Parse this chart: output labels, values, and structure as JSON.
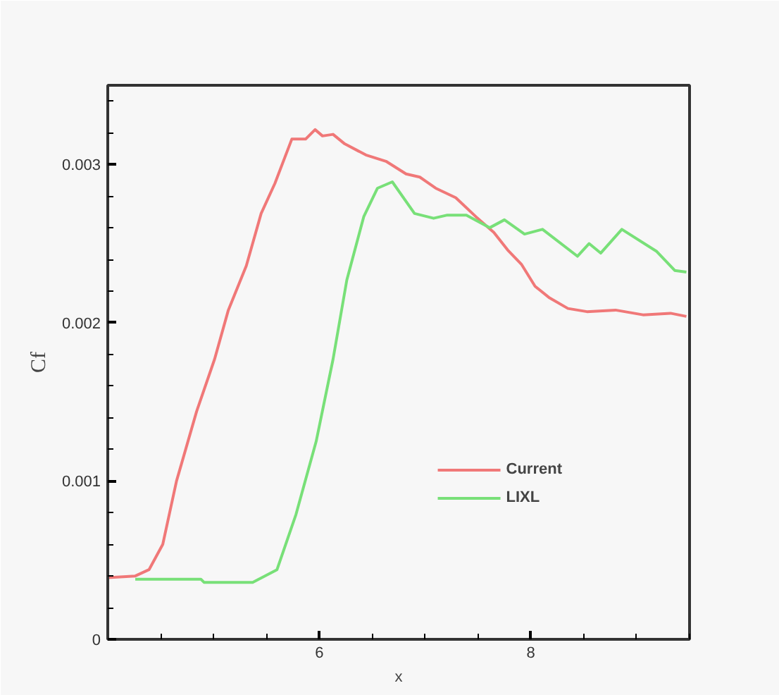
{
  "chart_data": {
    "type": "line",
    "xlabel": "x",
    "ylabel": "Cf",
    "xlim": [
      4,
      9.5
    ],
    "ylim": [
      0,
      0.0035
    ],
    "xticks": [
      6,
      8
    ],
    "yticks": [
      0,
      0.001,
      0.002,
      0.003
    ],
    "grid": false,
    "legend": "bottom right",
    "line_style": "solid",
    "marker": "none",
    "series": [
      {
        "name": "Current",
        "color": "#f07878",
        "x": [
          4,
          4.26,
          4.39,
          4.52,
          4.65,
          4.84,
          5.01,
          5.14,
          5.31,
          5.45,
          5.58,
          5.74,
          5.87,
          5.96,
          6.03,
          6.13,
          6.24,
          6.44,
          6.63,
          6.82,
          6.95,
          7.1,
          7.29,
          7.48,
          7.65,
          7.78,
          7.91,
          8.04,
          8.17,
          8.35,
          8.53,
          8.8,
          9.06,
          9.32,
          9.47
        ],
        "values": [
          0.00039,
          0.0004,
          0.00044,
          0.0006,
          0.001,
          0.00144,
          0.00177,
          0.00208,
          0.00236,
          0.00269,
          0.00288,
          0.00316,
          0.00316,
          0.00322,
          0.00318,
          0.00319,
          0.00313,
          0.00306,
          0.00302,
          0.00294,
          0.00292,
          0.00285,
          0.00279,
          0.00267,
          0.00257,
          0.00246,
          0.00237,
          0.00223,
          0.00216,
          0.00209,
          0.00207,
          0.00208,
          0.00205,
          0.00206,
          0.00204
        ]
      },
      {
        "name": "LIXL",
        "color": "#78e078",
        "x": [
          4.26,
          4.88,
          4.91,
          5.37,
          5.6,
          5.78,
          5.97,
          6.13,
          6.26,
          6.42,
          6.55,
          6.69,
          6.9,
          7.08,
          7.21,
          7.39,
          7.61,
          7.75,
          7.94,
          8.11,
          8.44,
          8.55,
          8.66,
          8.86,
          9.19,
          9.36,
          9.47
        ],
        "values": [
          0.00038,
          0.00038,
          0.00036,
          0.00036,
          0.00044,
          0.00079,
          0.00125,
          0.00177,
          0.00227,
          0.00267,
          0.00285,
          0.00289,
          0.00269,
          0.00266,
          0.00268,
          0.00268,
          0.0026,
          0.00265,
          0.00256,
          0.00259,
          0.00242,
          0.0025,
          0.00244,
          0.00259,
          0.00245,
          0.00233,
          0.00232
        ]
      }
    ]
  }
}
